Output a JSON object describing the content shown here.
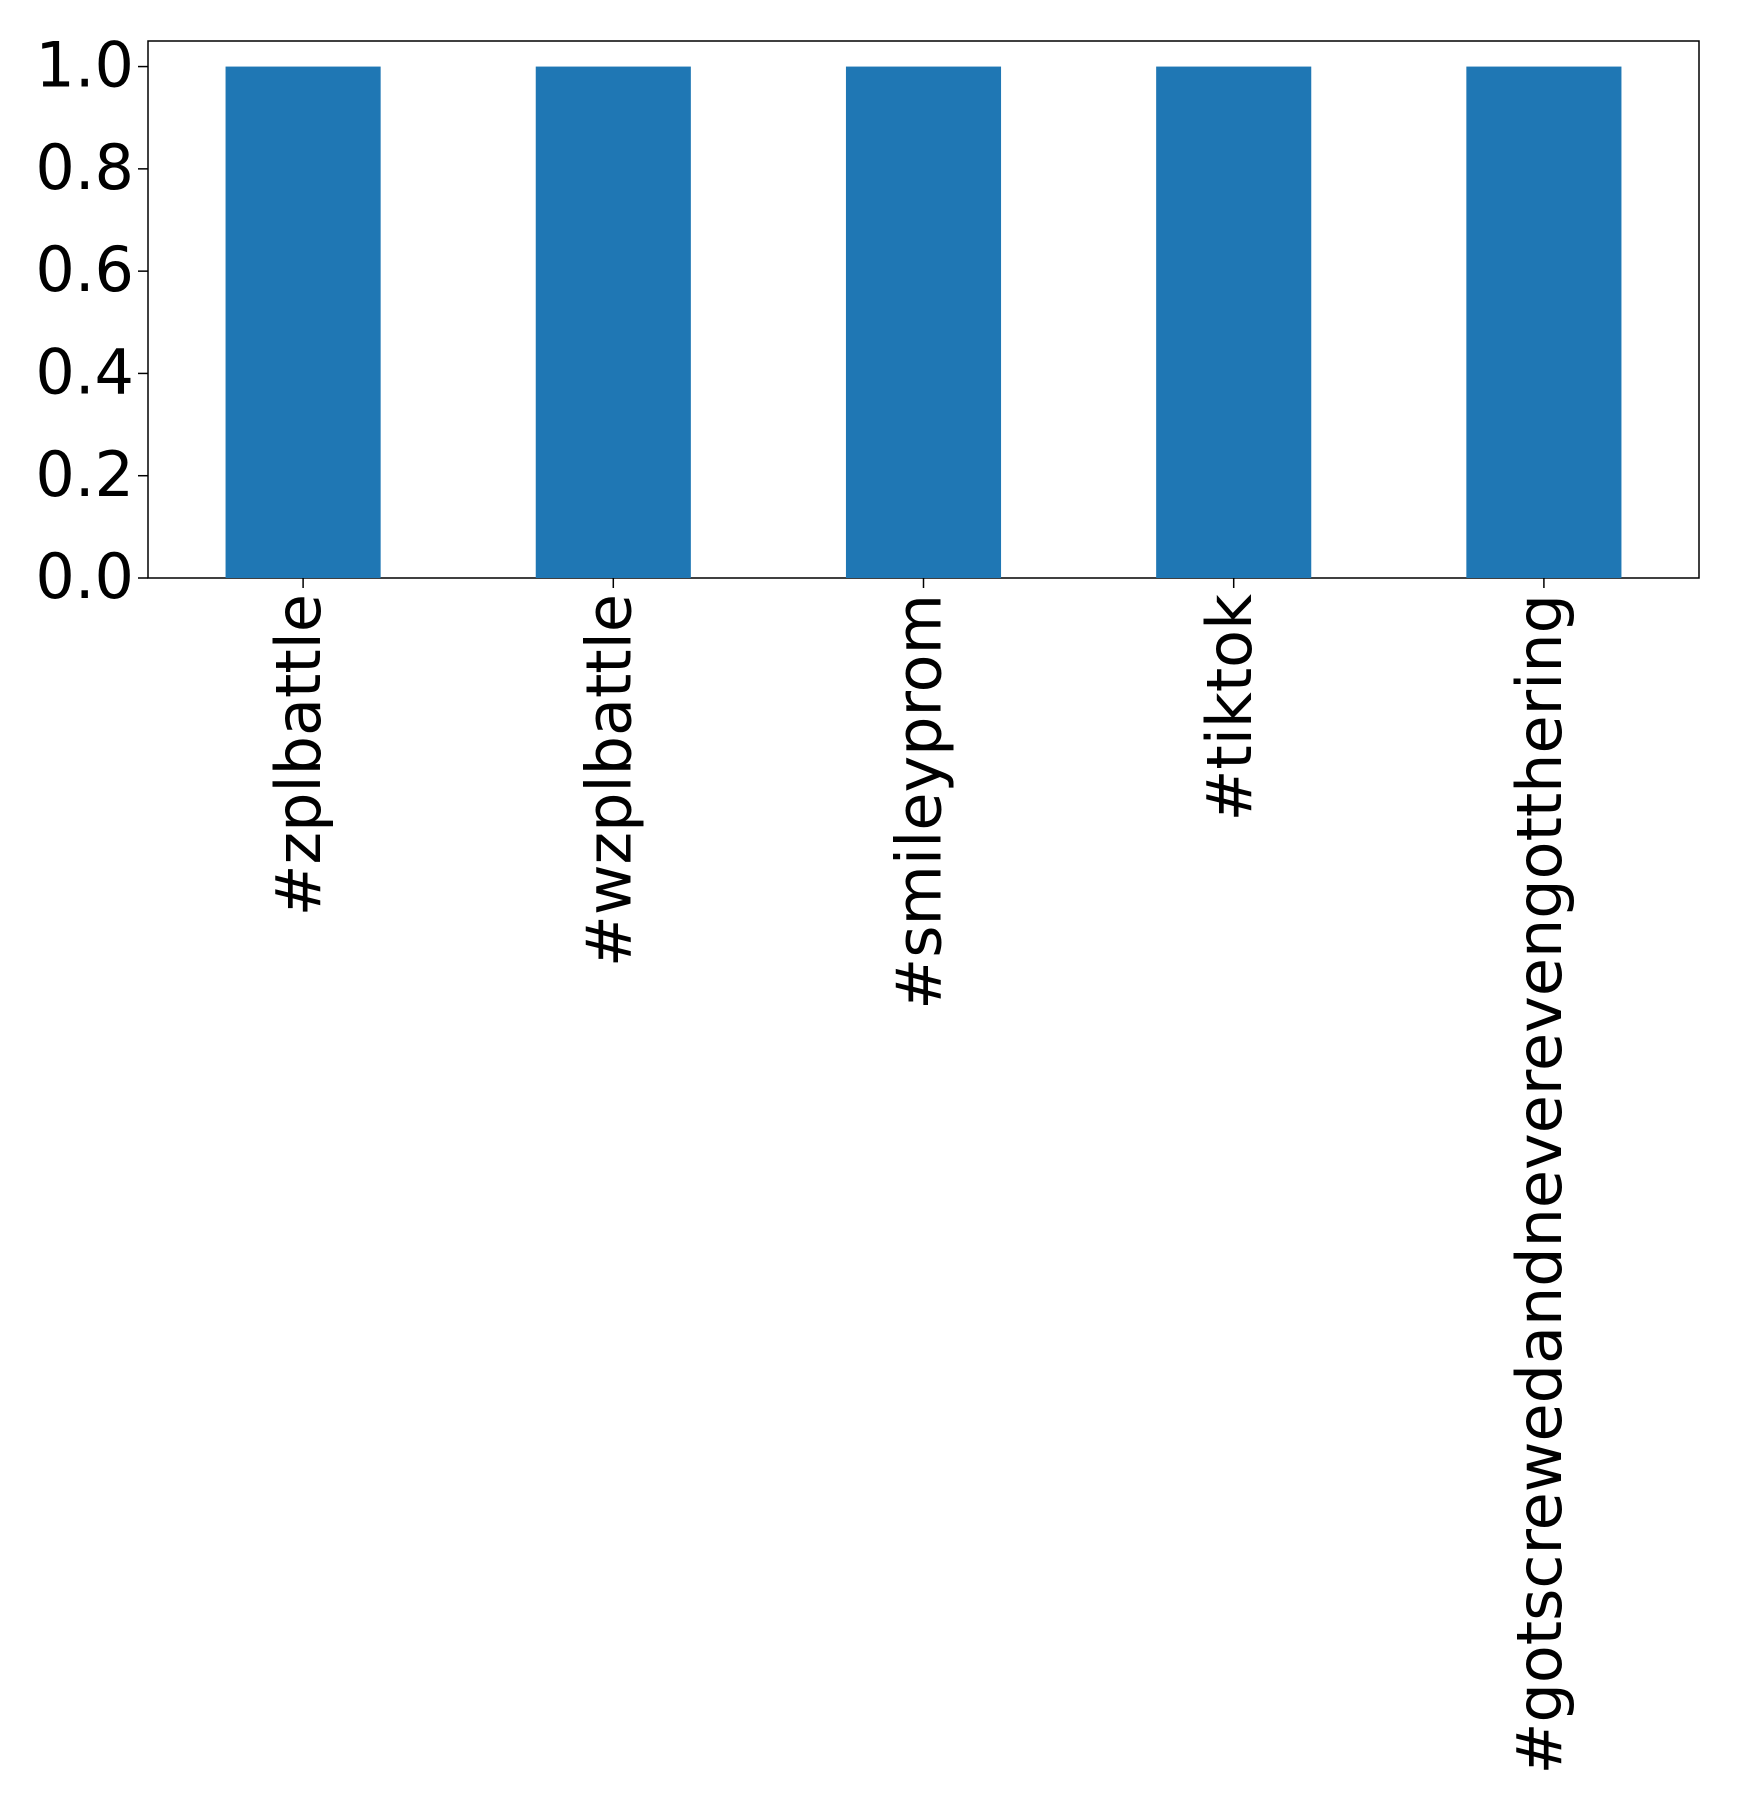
{
  "chart_data": {
    "type": "bar",
    "categories": [
      "#zplbattle",
      "#wzplbattle",
      "#smileyprom",
      "#tiktok",
      "#gotscrewedandneverevengotthering"
    ],
    "values": [
      1.0,
      1.0,
      1.0,
      1.0,
      1.0
    ],
    "color": "#1f77b4",
    "ylim": [
      0,
      1.05
    ],
    "yticks": [
      {
        "value": 0,
        "label": "0.0"
      },
      {
        "value": 0.2,
        "label": "0.2"
      },
      {
        "value": 0.4,
        "label": "0.4"
      },
      {
        "value": 0.6,
        "label": "0.6"
      },
      {
        "value": 0.8,
        "label": "0.8"
      },
      {
        "value": 1.0,
        "label": "1.0"
      }
    ],
    "grid": false
  }
}
